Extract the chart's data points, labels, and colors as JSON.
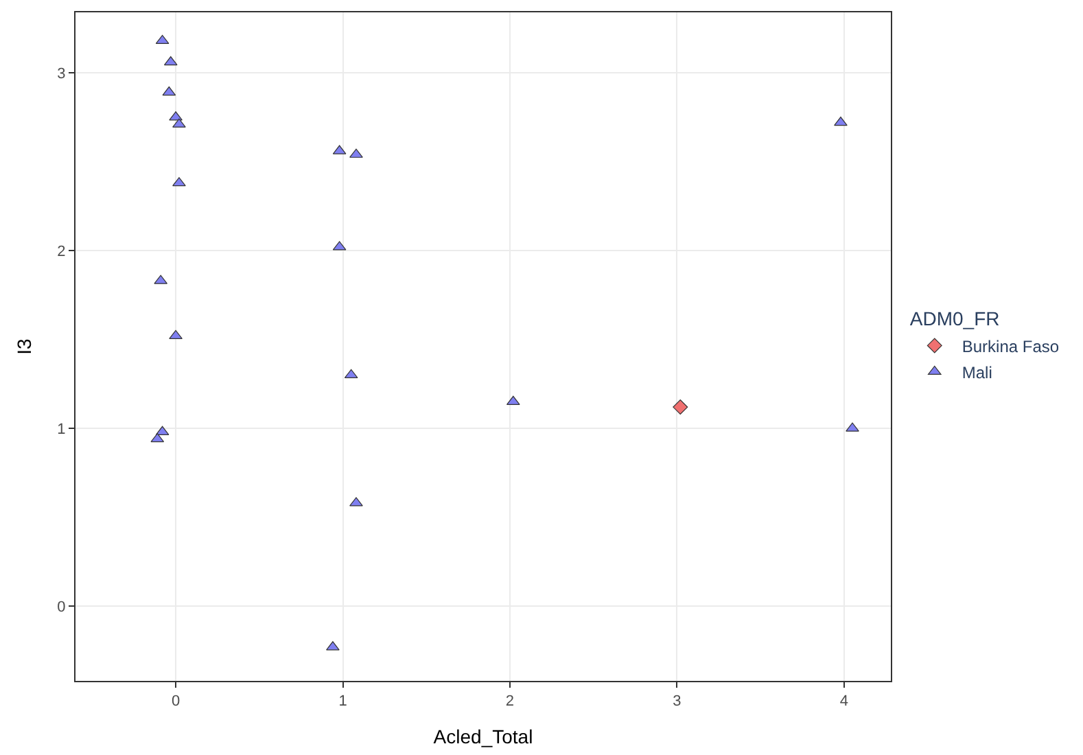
{
  "chart_data": {
    "type": "scatter",
    "xlabel": "Acled_Total",
    "ylabel": "I3",
    "legend_title": "ADM0_FR",
    "xlim": [
      -0.6,
      4.28
    ],
    "ylim": [
      -0.42,
      3.34
    ],
    "xticks": [
      0,
      1,
      2,
      3,
      4
    ],
    "yticks": [
      0,
      1,
      2,
      3
    ],
    "grid": true,
    "legend": "right",
    "series": [
      {
        "name": "Burkina Faso",
        "color": "#f07070",
        "marker": "diamond",
        "x": [
          3.02
        ],
        "values": [
          1.12
        ]
      },
      {
        "name": "Mali",
        "color": "#7f7ff0",
        "marker": "triangle",
        "x": [
          -0.08,
          -0.03,
          -0.04,
          0.0,
          0.02,
          0.02,
          -0.09,
          0.0,
          -0.08,
          -0.11,
          0.98,
          1.08,
          0.98,
          1.05,
          1.08,
          0.94,
          2.02,
          3.98,
          4.05
        ],
        "values": [
          3.18,
          3.06,
          2.89,
          2.75,
          2.71,
          2.38,
          1.83,
          1.52,
          0.98,
          0.94,
          2.56,
          2.54,
          2.02,
          1.3,
          0.58,
          -0.23,
          1.15,
          2.72,
          1.0
        ]
      }
    ]
  }
}
